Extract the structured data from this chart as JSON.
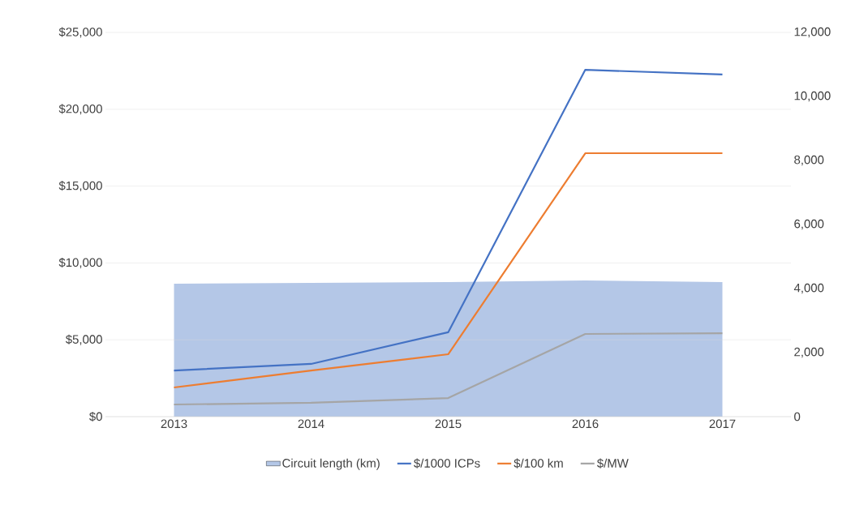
{
  "chart_data": {
    "type": "line",
    "categories": [
      "2013",
      "2014",
      "2015",
      "2016",
      "2017"
    ],
    "series": [
      {
        "name": "Circuit length (km)",
        "type": "area",
        "axis": "y2",
        "color": "#b4c7e7",
        "values": [
          4150,
          4180,
          4200,
          4250,
          4200
        ]
      },
      {
        "name": "$/1000 ICPs",
        "color": "#4472c4",
        "values": [
          3000,
          3430,
          5490,
          22570,
          22260
        ]
      },
      {
        "name": "$/100 km",
        "color": "#ed7d31",
        "values": [
          1900,
          3000,
          4060,
          17140,
          17140
        ]
      },
      {
        "name": "$/MW",
        "color": "#a5a5a5",
        "values": [
          790,
          900,
          1210,
          5380,
          5430
        ]
      }
    ],
    "ylim": [
      0,
      25000
    ],
    "yticks": [
      {
        "value": 0,
        "label": "$0"
      },
      {
        "value": 5000,
        "label": "$5,000"
      },
      {
        "value": 10000,
        "label": "$10,000"
      },
      {
        "value": 15000,
        "label": "$15,000"
      },
      {
        "value": 20000,
        "label": "$20,000"
      },
      {
        "value": 25000,
        "label": "$25,000"
      }
    ],
    "y2lim": [
      0,
      12000
    ],
    "y2ticks": [
      {
        "value": 0,
        "label": "0"
      },
      {
        "value": 2000,
        "label": "2,000"
      },
      {
        "value": 4000,
        "label": "4,000"
      },
      {
        "value": 6000,
        "label": "6,000"
      },
      {
        "value": 8000,
        "label": "8,000"
      },
      {
        "value": 10000,
        "label": "10,000"
      },
      {
        "value": 12000,
        "label": "12,000"
      }
    ],
    "grid": "y",
    "legend": "bottom",
    "marker": "none",
    "line_style": "solid"
  }
}
